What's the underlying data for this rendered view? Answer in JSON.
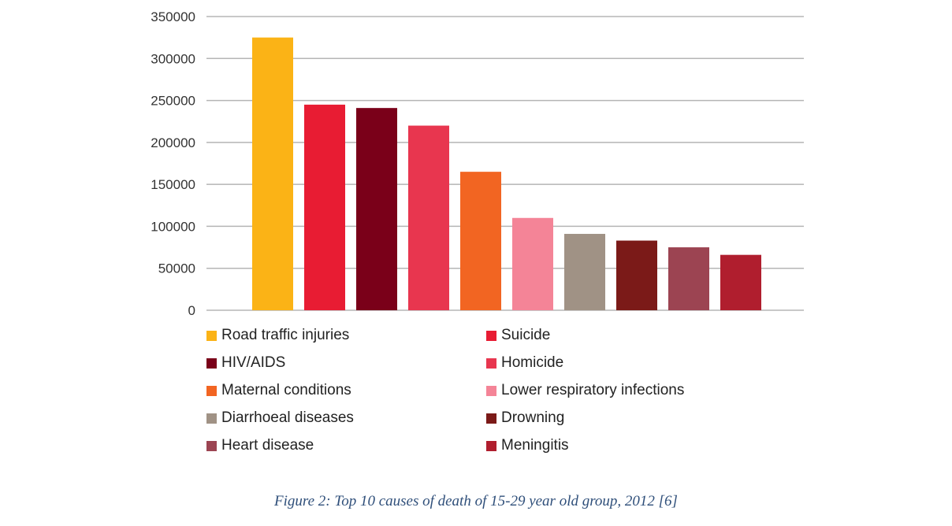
{
  "chart_data": {
    "type": "bar",
    "categories": [
      "Road traffic injuries",
      "Suicide",
      "HIV/AIDS",
      "Homicide",
      "Maternal conditions",
      "Lower respiratory infections",
      "Diarrhoeal diseases",
      "Drowning",
      "Heart disease",
      "Meningitis"
    ],
    "values": [
      325000,
      245000,
      241000,
      220000,
      165000,
      110000,
      91000,
      83000,
      75000,
      66000
    ],
    "colors": [
      "#fbb316",
      "#e81c33",
      "#7a0019",
      "#e8364f",
      "#f26522",
      "#f48497",
      "#a09285",
      "#7b1a18",
      "#9c4452",
      "#b01e2e"
    ],
    "yticks": [
      "0",
      "50000",
      "100000",
      "150000",
      "200000",
      "250000",
      "300000",
      "350000"
    ],
    "ylim": [
      0,
      350000
    ],
    "grid": true,
    "legend_position": "bottom",
    "caption": "Figure 2: Top 10 causes of death of 15-29 year old group, 2012 [6]"
  }
}
